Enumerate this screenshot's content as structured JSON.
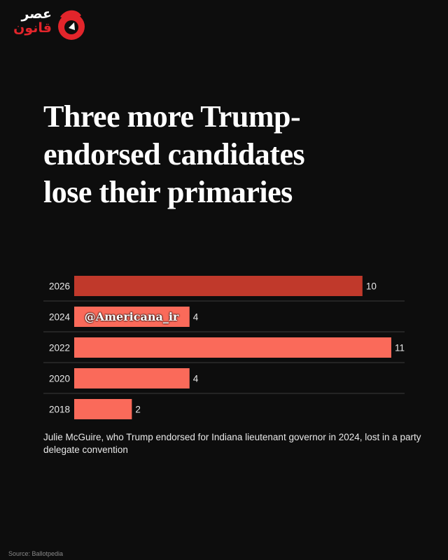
{
  "logo": {
    "line1": "عصر",
    "line2": "قانون",
    "accent_color": "#e2252b"
  },
  "watermark": "@Americana_ir",
  "chart_data": {
    "type": "bar",
    "orientation": "horizontal",
    "title": "Three more Trump-endorsed candidates lose their primaries",
    "categories": [
      "2026",
      "2024",
      "2022",
      "2020",
      "2018"
    ],
    "values": [
      10,
      4,
      11,
      4,
      2
    ],
    "xlim": [
      0,
      11
    ],
    "colors": {
      "highlight": "#c0392b",
      "default": "#fa6a5a"
    },
    "highlight_category": "2026",
    "grid": true,
    "annotation": "Julie McGuire, who Trump endorsed for Indiana lieutenant governor in 2024, lost in a party delegate convention",
    "source": "Source: Ballotpedia"
  }
}
